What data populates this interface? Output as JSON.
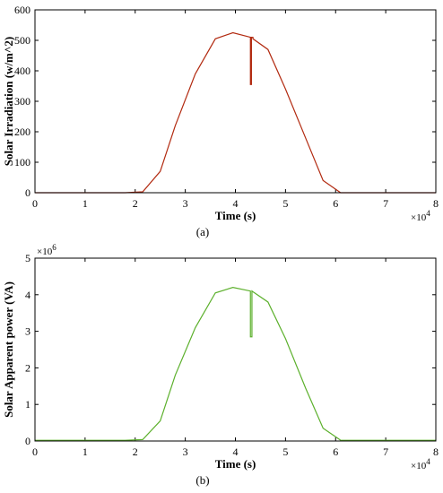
{
  "chart_data": [
    {
      "type": "line",
      "panel_label": "(a)",
      "xlabel": "Time (s)",
      "ylabel": "Solar Irradiation (w/m^2)",
      "x_multiplier_label": "×10",
      "x_multiplier_exp": "4",
      "y_multiplier_label": "",
      "y_multiplier_exp": "",
      "xlim": [
        0,
        8
      ],
      "ylim": [
        0,
        600
      ],
      "xticks": [
        0,
        1,
        2,
        3,
        4,
        5,
        6,
        7,
        8
      ],
      "yticks": [
        0,
        100,
        200,
        300,
        400,
        500,
        600
      ],
      "grid": false,
      "color": "#b22a10",
      "series": [
        {
          "x": [
            0,
            1.8,
            2.15,
            2.5,
            2.8,
            3.2,
            3.6,
            3.95,
            4.3,
            4.3,
            4.32,
            4.32,
            4.35,
            4.35,
            4.65,
            5.0,
            5.4,
            5.75,
            6.1,
            7.0,
            8.0
          ],
          "values": [
            0,
            0,
            3,
            70,
            220,
            390,
            505,
            525,
            510,
            355,
            355,
            510,
            510,
            505,
            470,
            340,
            180,
            40,
            0,
            0,
            0
          ]
        }
      ]
    },
    {
      "type": "line",
      "panel_label": "(b)",
      "xlabel": "Time (s)",
      "ylabel": "Solar Apparent power (VA)",
      "x_multiplier_label": "×10",
      "x_multiplier_exp": "4",
      "y_multiplier_label": "×10",
      "y_multiplier_exp": "6",
      "xlim": [
        0,
        8
      ],
      "ylim": [
        0,
        5
      ],
      "xticks": [
        0,
        1,
        2,
        3,
        4,
        5,
        6,
        7,
        8
      ],
      "yticks": [
        0,
        1,
        2,
        3,
        4,
        5
      ],
      "grid": false,
      "color": "#5cb02c",
      "series": [
        {
          "x": [
            0,
            1.8,
            2.15,
            2.5,
            2.8,
            3.2,
            3.6,
            3.95,
            4.3,
            4.3,
            4.33,
            4.33,
            4.35,
            4.65,
            5.0,
            5.4,
            5.75,
            6.1,
            7.0,
            8.0
          ],
          "values": [
            0.02,
            0.02,
            0.04,
            0.55,
            1.8,
            3.1,
            4.05,
            4.2,
            4.1,
            2.85,
            2.85,
            4.1,
            4.08,
            3.8,
            2.8,
            1.45,
            0.35,
            0.02,
            0.02,
            0.02
          ]
        }
      ]
    }
  ]
}
